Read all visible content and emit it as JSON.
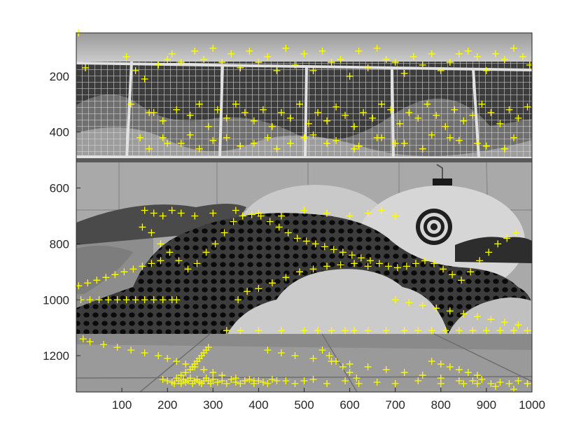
{
  "chart_data": {
    "type": "scatter",
    "title": "",
    "xlabel": "",
    "ylabel": "",
    "xlim": [
      0,
      1000
    ],
    "ylim": [
      1330,
      45
    ],
    "y_axis_reversed": true,
    "grid": false,
    "legend": "none",
    "xticks": [
      "100",
      "200",
      "300",
      "400",
      "500",
      "600",
      "700",
      "800",
      "900",
      "1000"
    ],
    "yticks": [
      "200",
      "400",
      "600",
      "800",
      "1000",
      "1200"
    ],
    "marker_symbol": "+",
    "marker_color": "#ffff00",
    "background_image": "grayscale photo of wall mural with fence and circular pattern",
    "series": [
      {
        "x": [
          5,
          20,
          110,
          130,
          150,
          180,
          200,
          170,
          210,
          230,
          260,
          280,
          300,
          320,
          340,
          360,
          380,
          400,
          420,
          440,
          460,
          480,
          500,
          520,
          540,
          560,
          580,
          600,
          620,
          640,
          660,
          680,
          700,
          720,
          740,
          760,
          780,
          800,
          820,
          840,
          860,
          880,
          900,
          920,
          940,
          960,
          980,
          995,
          120,
          160,
          190,
          220,
          250,
          270,
          290,
          310,
          330,
          350,
          370,
          390,
          410,
          430,
          450,
          470,
          490,
          510,
          530,
          550,
          570,
          590,
          610,
          630,
          650,
          670,
          690,
          710,
          730,
          750,
          770,
          790,
          810,
          830,
          850,
          870,
          890,
          910,
          930,
          950,
          970,
          990,
          140,
          200,
          250,
          300,
          360,
          420,
          470,
          520,
          570,
          620,
          670,
          720,
          780,
          840,
          900,
          960,
          160,
          190,
          230,
          270,
          330,
          390,
          440,
          500,
          550,
          610,
          660,
          700,
          760,
          820,
          880,
          940,
          150,
          170,
          190,
          210,
          230,
          260,
          300,
          350,
          400,
          450,
          500,
          550,
          600,
          640,
          670,
          700,
          145,
          165,
          185,
          205,
          225,
          245,
          265,
          285,
          305,
          325,
          345,
          365,
          385,
          405,
          425,
          445,
          465,
          485,
          505,
          525,
          545,
          565,
          585,
          605,
          625,
          645,
          665,
          685,
          705,
          725,
          745,
          765,
          785,
          805,
          825,
          845,
          865,
          885,
          905,
          925,
          945,
          965,
          10,
          30,
          50,
          70,
          90,
          110,
          130,
          150,
          170,
          190,
          210,
          220,
          5,
          25,
          45,
          65,
          85,
          105,
          125,
          145,
          165,
          185,
          355,
          375,
          400,
          430,
          460,
          490,
          520,
          550,
          580,
          610,
          640,
          700,
          730,
          760,
          790,
          820,
          850,
          880,
          910,
          940,
          970,
          330,
          360,
          400,
          450,
          500,
          530,
          560,
          590,
          610,
          640,
          680,
          720,
          750,
          780,
          810,
          840,
          870,
          900,
          930,
          960,
          990,
          15,
          30,
          60,
          90,
          120,
          150,
          180,
          200,
          220,
          240,
          260,
          280,
          300,
          320,
          350,
          370,
          390,
          420,
          450,
          480,
          520,
          560,
          600,
          640,
          680,
          720,
          760,
          800,
          840,
          880,
          920,
          960,
          990,
          190,
          200,
          210,
          215,
          220,
          225,
          230,
          235,
          240,
          245,
          250,
          255,
          260,
          265,
          270,
          275,
          280,
          285,
          290,
          295,
          300,
          310,
          320,
          330,
          340,
          350,
          360,
          370,
          380,
          390,
          400,
          410,
          420,
          430,
          440,
          460,
          480,
          500,
          520,
          550,
          590,
          620,
          660,
          700,
          750,
          800,
          850,
          870,
          890,
          910,
          930,
          950,
          970,
          990,
          230,
          240,
          250,
          255,
          260,
          265,
          270,
          275,
          280,
          285,
          290,
          540,
          555,
          570,
          585,
          600,
          615,
          780,
          800,
          820,
          840,
          860,
          880
        ],
        "y": [
          45,
          170,
          130,
          180,
          210,
          160,
          140,
          330,
          120,
          150,
          110,
          140,
          100,
          150,
          120,
          170,
          110,
          150,
          130,
          180,
          100,
          160,
          120,
          180,
          110,
          150,
          140,
          200,
          110,
          170,
          100,
          140,
          150,
          190,
          130,
          160,
          120,
          180,
          150,
          120,
          110,
          130,
          180,
          120,
          140,
          100,
          130,
          160,
          300,
          330,
          360,
          320,
          340,
          300,
          380,
          320,
          350,
          300,
          330,
          360,
          320,
          380,
          330,
          350,
          300,
          370,
          330,
          360,
          310,
          340,
          380,
          330,
          350,
          300,
          320,
          370,
          330,
          350,
          300,
          340,
          380,
          320,
          360,
          340,
          300,
          330,
          370,
          320,
          350,
          310,
          420,
          440,
          410,
          430,
          450,
          420,
          440,
          410,
          430,
          450,
          420,
          440,
          410,
          430,
          450,
          420,
          460,
          420,
          440,
          460,
          420,
          440,
          460,
          420,
          440,
          460,
          420,
          440,
          460,
          420,
          440,
          460,
          680,
          690,
          700,
          680,
          690,
          700,
          690,
          680,
          690,
          700,
          680,
          690,
          700,
          690,
          680,
          700,
          740,
          760,
          800,
          830,
          860,
          890,
          870,
          830,
          800,
          760,
          720,
          700,
          695,
          700,
          720,
          740,
          760,
          780,
          790,
          800,
          810,
          820,
          830,
          840,
          850,
          860,
          870,
          880,
          885,
          880,
          870,
          860,
          870,
          890,
          910,
          930,
          900,
          860,
          830,
          800,
          780,
          760,
          1000,
          1000,
          1000,
          1000,
          1000,
          1000,
          1000,
          1000,
          1000,
          1000,
          1000,
          1000,
          950,
          940,
          930,
          920,
          910,
          900,
          890,
          880,
          870,
          860,
          1000,
          970,
          960,
          940,
          920,
          900,
          890,
          880,
          875,
          870,
          880,
          1000,
          1010,
          1020,
          1030,
          1040,
          1050,
          1060,
          1070,
          1080,
          1090,
          1110,
          1110,
          1110,
          1110,
          1110,
          1110,
          1110,
          1110,
          1110,
          1110,
          1110,
          1110,
          1110,
          1110,
          1110,
          1110,
          1110,
          1110,
          1110,
          1110,
          1110,
          1140,
          1150,
          1160,
          1170,
          1180,
          1190,
          1200,
          1210,
          1220,
          1230,
          1240,
          1250,
          1260,
          1270,
          1280,
          1290,
          1300,
          1180,
          1190,
          1200,
          1210,
          1220,
          1230,
          1240,
          1250,
          1260,
          1270,
          1280,
          1290,
          1300,
          1310,
          1320,
          1300,
          1285,
          1290,
          1295,
          1300,
          1280,
          1290,
          1300,
          1285,
          1295,
          1290,
          1280,
          1300,
          1290,
          1285,
          1295,
          1300,
          1290,
          1280,
          1290,
          1300,
          1285,
          1295,
          1290,
          1300,
          1285,
          1295,
          1300,
          1290,
          1285,
          1290,
          1290,
          1295,
          1300,
          1285,
          1290,
          1290,
          1300,
          1290,
          1285,
          1300,
          1290,
          1300,
          1295,
          1300,
          1290,
          1300,
          1300,
          1290,
          1285,
          1300,
          1295,
          1300,
          1290,
          1300,
          1270,
          1260,
          1250,
          1240,
          1230,
          1220,
          1210,
          1200,
          1190,
          1180,
          1170,
          1180,
          1200,
          1220,
          1240,
          1260,
          1280,
          1220,
          1230,
          1240,
          1250,
          1260,
          1270
        ]
      }
    ]
  }
}
